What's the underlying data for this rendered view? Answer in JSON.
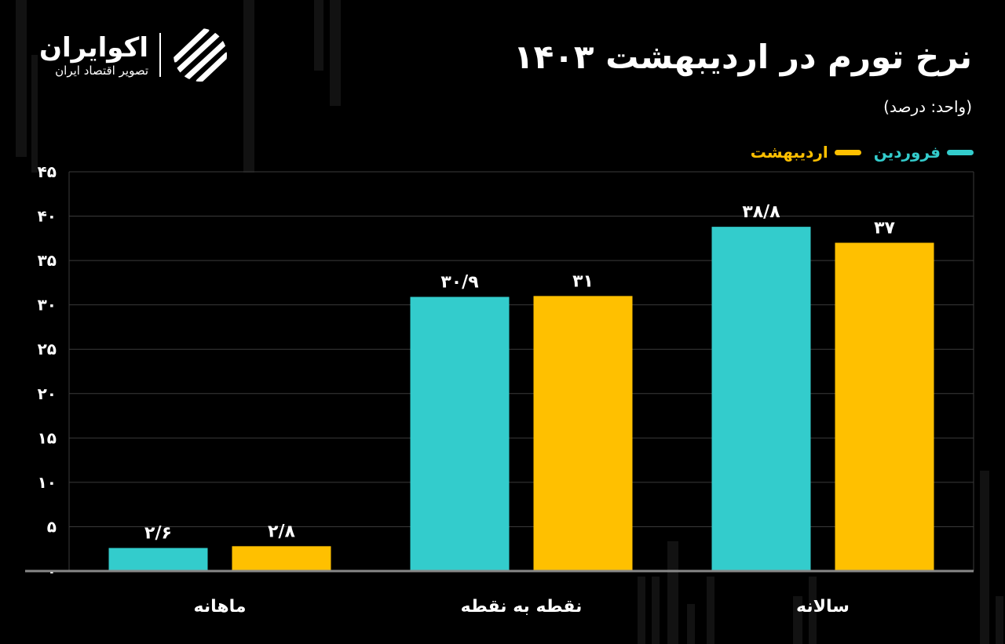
{
  "brand": {
    "name": "اکوایران",
    "tagline": "تصویر اقتصاد ایران"
  },
  "colors": {
    "background": "#000000",
    "farvardin": "#33CCCC",
    "ordibehesht": "#FFC000",
    "grid": "#3a3a3a",
    "text": "#FFFFFF"
  },
  "chart_data": {
    "type": "bar",
    "title": "نرخ تورم در اردیبهشت ۱۴۰۳",
    "subtitle": "(واحد: درصد)",
    "categories": [
      "ماهانه",
      "نقطه به نقطه",
      "سالانه"
    ],
    "series": [
      {
        "name": "فروردین",
        "values": [
          2.6,
          30.9,
          38.8
        ],
        "labels": [
          "۲/۶",
          "۳۰/۹",
          "۳۸/۸"
        ]
      },
      {
        "name": "اردیبهشت",
        "values": [
          2.8,
          31,
          37
        ],
        "labels": [
          "۲/۸",
          "۳۱",
          "۳۷"
        ]
      }
    ],
    "ylim": [
      0,
      45
    ],
    "yticks": [
      0,
      5,
      10,
      15,
      20,
      25,
      30,
      35,
      40,
      45
    ],
    "ytick_labels": [
      "۰",
      "۵",
      "۱۰",
      "۱۵",
      "۲۰",
      "۲۵",
      "۳۰",
      "۳۵",
      "۴۰",
      "۴۵"
    ],
    "grid": true,
    "legend": "top-right",
    "xlabel": "",
    "ylabel": ""
  }
}
